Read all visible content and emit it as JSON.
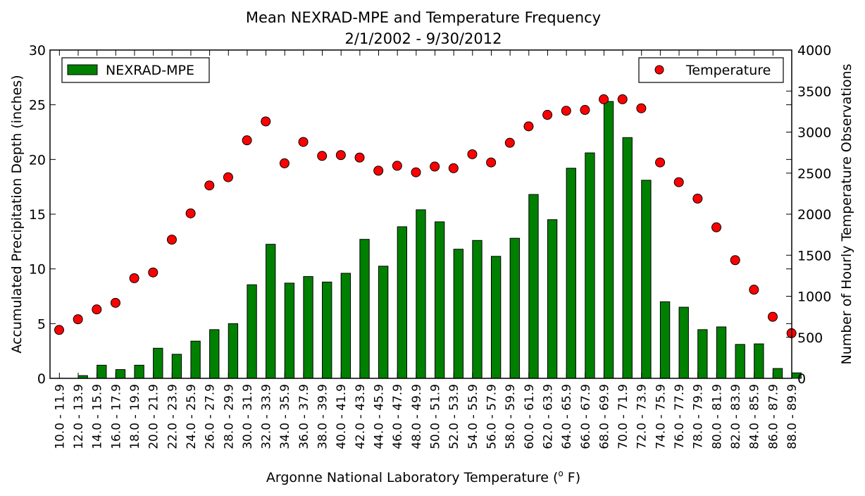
{
  "chart_data": {
    "type": "bar",
    "title": "Mean NEXRAD-MPE and Temperature Frequency",
    "subtitle": "2/1/2002 - 9/30/2012",
    "xlabel": "Argonne National Laboratory Temperature (o F)",
    "xlabel_prefix": "Argonne National Laboratory Temperature (",
    "xlabel_sup": "o",
    "xlabel_suffix": " F)",
    "ylabel_left": "Accumulated Precipitation Depth (inches)",
    "ylabel_right": "Number of Hourly Temperature Observations",
    "ylim_left": [
      0,
      30
    ],
    "ylim_right": [
      0,
      4000
    ],
    "yticks_left": [
      "0",
      "5",
      "10",
      "15",
      "20",
      "25",
      "30"
    ],
    "yticks_right": [
      "0",
      "500",
      "1000",
      "1500",
      "2000",
      "2500",
      "3000",
      "3500",
      "4000"
    ],
    "grid": false,
    "categories": [
      "10.0 - 11.9",
      "12.0 - 13.9",
      "14.0 - 15.9",
      "16.0 - 17.9",
      "18.0 - 19.9",
      "20.0 - 21.9",
      "22.0 - 23.9",
      "24.0 - 25.9",
      "26.0 - 27.9",
      "28.0 - 29.9",
      "30.0 - 31.9",
      "32.0 - 33.9",
      "34.0 - 35.9",
      "36.0 - 37.9",
      "38.0 - 39.9",
      "40.0 - 41.9",
      "42.0 - 43.9",
      "44.0 - 45.9",
      "46.0 - 47.9",
      "48.0 - 49.9",
      "50.0 - 51.9",
      "52.0 - 53.9",
      "54.0 - 55.9",
      "56.0 - 57.9",
      "58.0 - 59.9",
      "60.0 - 61.9",
      "62.0 - 63.9",
      "64.0 - 65.9",
      "66.0 - 67.9",
      "68.0 - 69.9",
      "70.0 - 71.9",
      "72.0 - 73.9",
      "74.0 - 75.9",
      "76.0 - 77.9",
      "78.0 - 79.9",
      "80.0 - 81.9",
      "82.0 - 83.9",
      "84.0 - 85.9",
      "86.0 - 87.9",
      "88.0 - 89.9"
    ],
    "series": [
      {
        "name": "NEXRAD-MPE",
        "kind": "bar",
        "axis": "left",
        "color": "#008000",
        "values": [
          0.0,
          0.25,
          1.2,
          0.8,
          1.2,
          2.75,
          2.2,
          3.4,
          4.45,
          5.0,
          8.55,
          12.25,
          8.7,
          9.3,
          8.8,
          9.6,
          12.7,
          10.25,
          13.85,
          15.4,
          14.3,
          11.8,
          12.6,
          11.15,
          12.8,
          16.8,
          14.5,
          19.2,
          20.6,
          25.3,
          22.0,
          18.1,
          7.0,
          6.5,
          4.45,
          4.7,
          3.1,
          3.15,
          0.9,
          0.5
        ]
      },
      {
        "name": "Temperature",
        "kind": "scatter",
        "axis": "right",
        "color": "#ff0000",
        "values": [
          590,
          720,
          840,
          920,
          1220,
          1290,
          1690,
          2010,
          2350,
          2450,
          2900,
          3130,
          2620,
          2880,
          2710,
          2720,
          2690,
          2530,
          2590,
          2510,
          2580,
          2560,
          2730,
          2630,
          2870,
          3070,
          3210,
          3260,
          3270,
          3400,
          3400,
          3290,
          2630,
          2390,
          2190,
          1840,
          1440,
          1080,
          750,
          550
        ]
      }
    ],
    "legend_left": {
      "label": "NEXRAD-MPE",
      "placement": "upper-left"
    },
    "legend_right": {
      "label": "Temperature",
      "placement": "upper-right"
    }
  }
}
